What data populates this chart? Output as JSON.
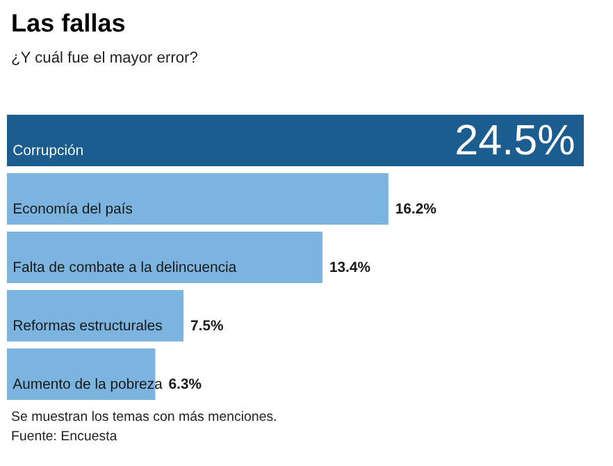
{
  "chart_data": {
    "type": "bar",
    "orientation": "horizontal",
    "title": "Las fallas",
    "subtitle": "¿Y cuál fue el mayor error?",
    "categories": [
      "Corrupción",
      "Economía del país",
      "Falta de combate a la delincuencia",
      "Reformas estructurales",
      "Aumento de la pobreza"
    ],
    "values": [
      24.5,
      16.2,
      13.4,
      7.5,
      6.3
    ],
    "colors": [
      "#1b5d8f",
      "#7ab4df",
      "#7ab4df",
      "#7ab4df",
      "#7ab4df"
    ],
    "value_labels": [
      "24.5%",
      "16.2%",
      "13.4%",
      "7.5%",
      "6.3%"
    ],
    "annotations": [
      "Se muestran los temas con más menciones.",
      "Fuente: Encuesta"
    ]
  }
}
